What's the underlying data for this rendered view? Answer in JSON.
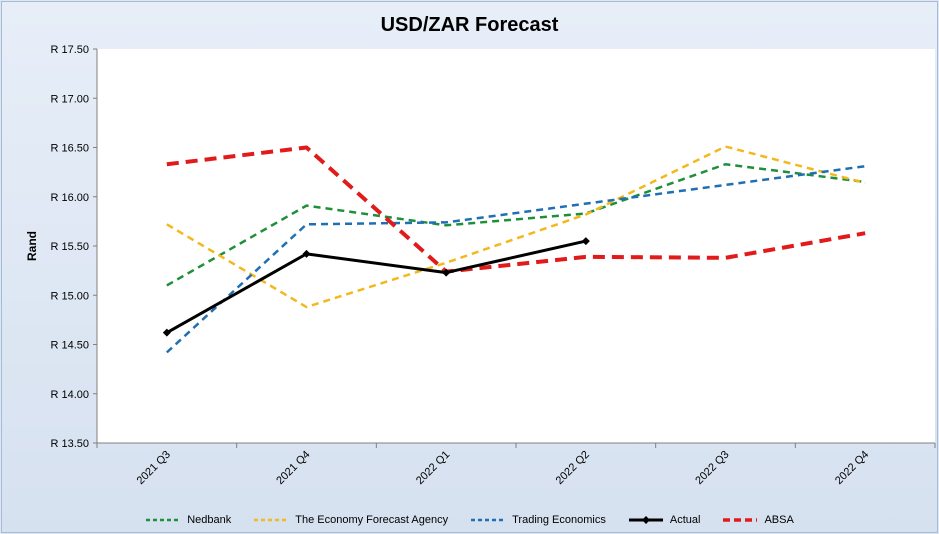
{
  "chart_data": {
    "type": "line",
    "title": "USD/ZAR Forecast",
    "xlabel": "",
    "ylabel": "Rand",
    "categories": [
      "2021 Q3",
      "2021 Q4",
      "2022 Q1",
      "2022 Q2",
      "2022 Q3",
      "2022 Q4"
    ],
    "ylim": [
      13.5,
      17.5
    ],
    "yticks": [
      13.5,
      14.0,
      14.5,
      15.0,
      15.5,
      16.0,
      16.5,
      17.0,
      17.5
    ],
    "ytick_labels": [
      "R 13.50",
      "R 14.00",
      "R 14.50",
      "R 15.00",
      "R 15.50",
      "R 16.00",
      "R 16.50",
      "R 17.00",
      "R 17.50"
    ],
    "grid": false,
    "legend_position": "bottom",
    "series": [
      {
        "name": "Nedbank",
        "color": "#1f8f3a",
        "style": "dashed",
        "values": [
          15.1,
          15.91,
          15.71,
          15.83,
          16.33,
          16.15
        ]
      },
      {
        "name": "The Economy Forecast Agency",
        "color": "#f2b81c",
        "style": "dashed",
        "values": [
          15.72,
          14.88,
          15.33,
          15.82,
          16.51,
          16.14
        ]
      },
      {
        "name": "Trading Economics",
        "color": "#1f6fb5",
        "style": "dashed",
        "values": [
          14.42,
          15.72,
          15.74,
          15.93,
          16.12,
          16.31
        ]
      },
      {
        "name": "Actual",
        "color": "#000000",
        "style": "solid-marker",
        "values": [
          14.62,
          15.42,
          15.23,
          15.55,
          null,
          null
        ]
      },
      {
        "name": "ABSA",
        "color": "#e11b1b",
        "style": "bold-dashed",
        "values": [
          16.33,
          16.5,
          15.24,
          15.39,
          15.38,
          15.63
        ]
      }
    ]
  }
}
